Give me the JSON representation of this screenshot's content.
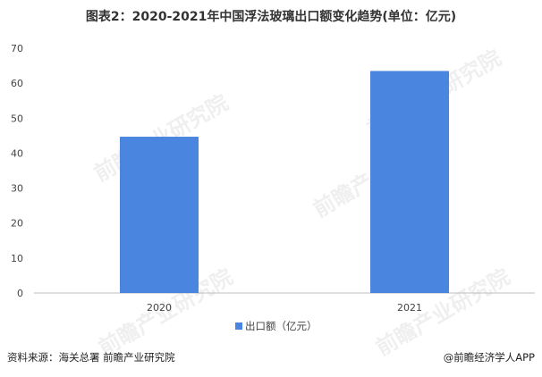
{
  "title": "图表2：2020-2021年中国浮法玻璃出口额变化趋势(单位：亿元)",
  "footer": {
    "source": "资料来源：海关总署 前瞻产业研究院",
    "brand": "@前瞻经济学人APP"
  },
  "watermark": "前瞻产业研究院",
  "colors": {
    "bar": "#4a86e0",
    "axis": "#bfbfbf",
    "text": "#444444"
  },
  "chart_data": {
    "type": "bar",
    "categories": [
      "2020",
      "2021"
    ],
    "series": [
      {
        "name": "出口额（亿元）",
        "values": [
          44.7,
          63.5
        ]
      }
    ],
    "ylim": [
      0,
      70
    ],
    "yticks": [
      0,
      10,
      20,
      30,
      40,
      50,
      60,
      70
    ],
    "grid": false,
    "legend": "bottom"
  }
}
